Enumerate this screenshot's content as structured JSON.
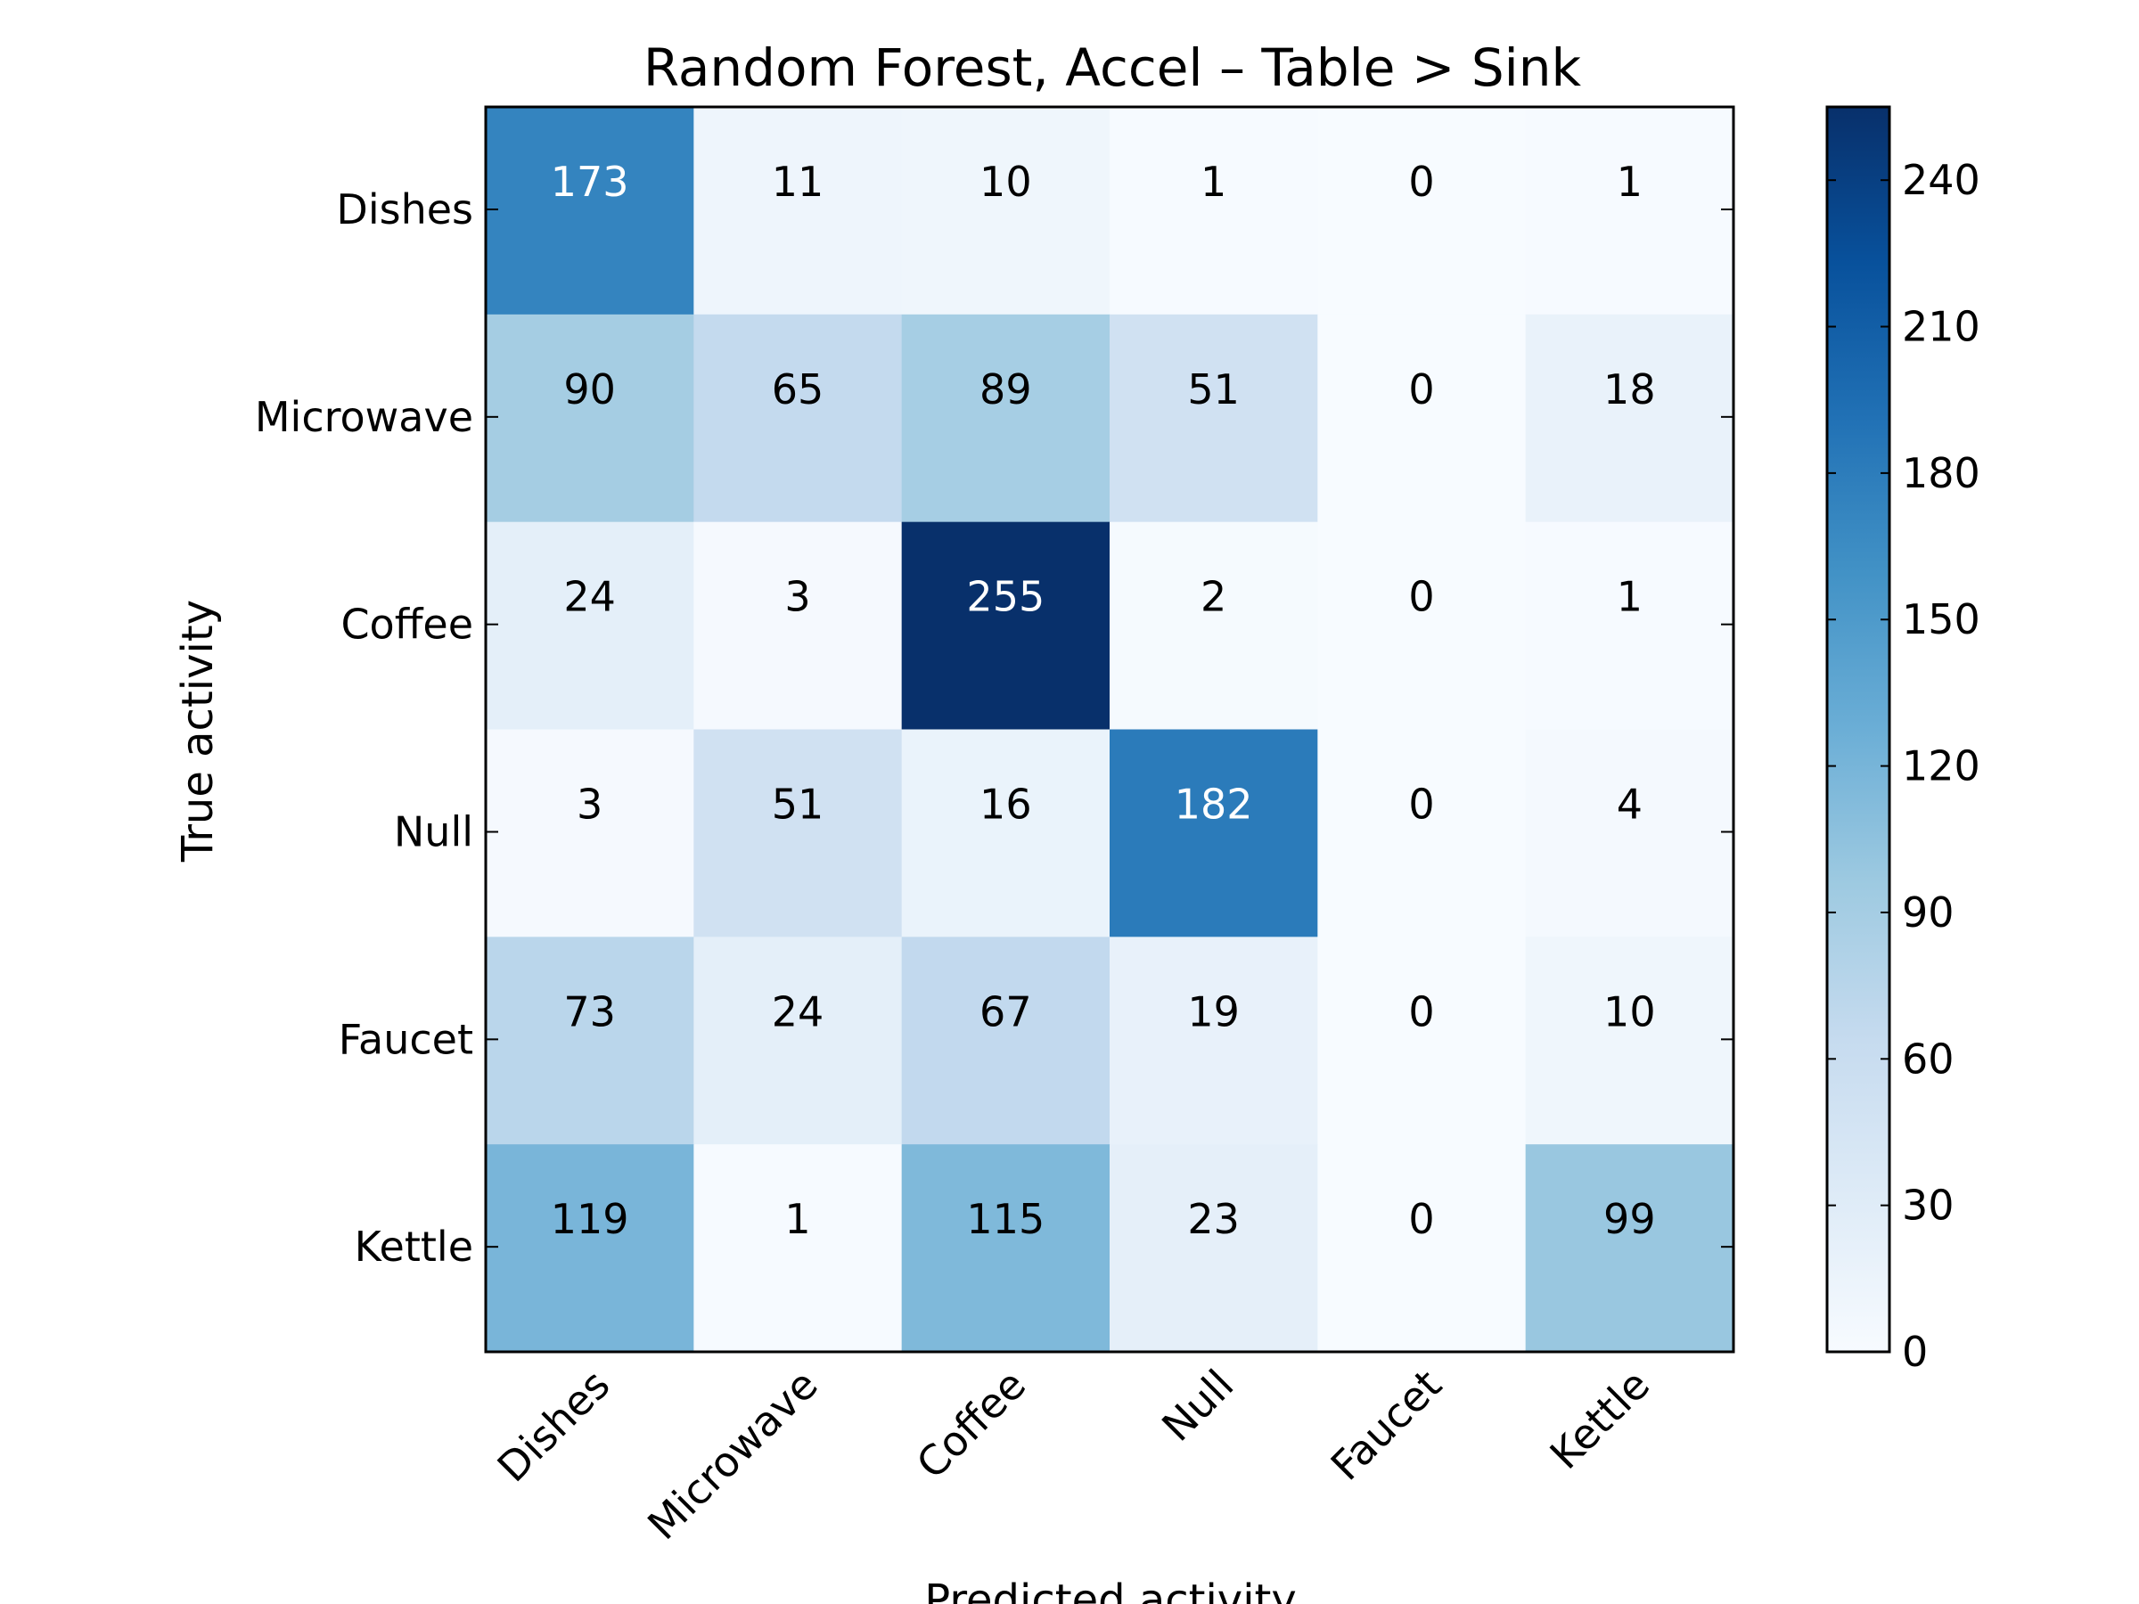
{
  "chart_data": {
    "type": "heatmap",
    "title": "Random Forest, Accel – Table > Sink",
    "xlabel": "Predicted activity",
    "ylabel": "True activity",
    "x_categories": [
      "Dishes",
      "Microwave",
      "Coffee",
      "Null",
      "Faucet",
      "Kettle"
    ],
    "y_categories": [
      "Dishes",
      "Microwave",
      "Coffee",
      "Null",
      "Faucet",
      "Kettle"
    ],
    "values": [
      [
        173,
        11,
        10,
        1,
        0,
        1
      ],
      [
        90,
        65,
        89,
        51,
        0,
        18
      ],
      [
        24,
        3,
        255,
        2,
        0,
        1
      ],
      [
        3,
        51,
        16,
        182,
        0,
        4
      ],
      [
        73,
        24,
        67,
        19,
        0,
        10
      ],
      [
        119,
        1,
        115,
        23,
        0,
        99
      ]
    ],
    "colormap": "Blues",
    "colorbar": {
      "range": [
        0,
        255
      ],
      "ticks": [
        0,
        30,
        60,
        90,
        120,
        150,
        180,
        210,
        240
      ]
    },
    "grid": false,
    "legend": "colorbar-right"
  }
}
